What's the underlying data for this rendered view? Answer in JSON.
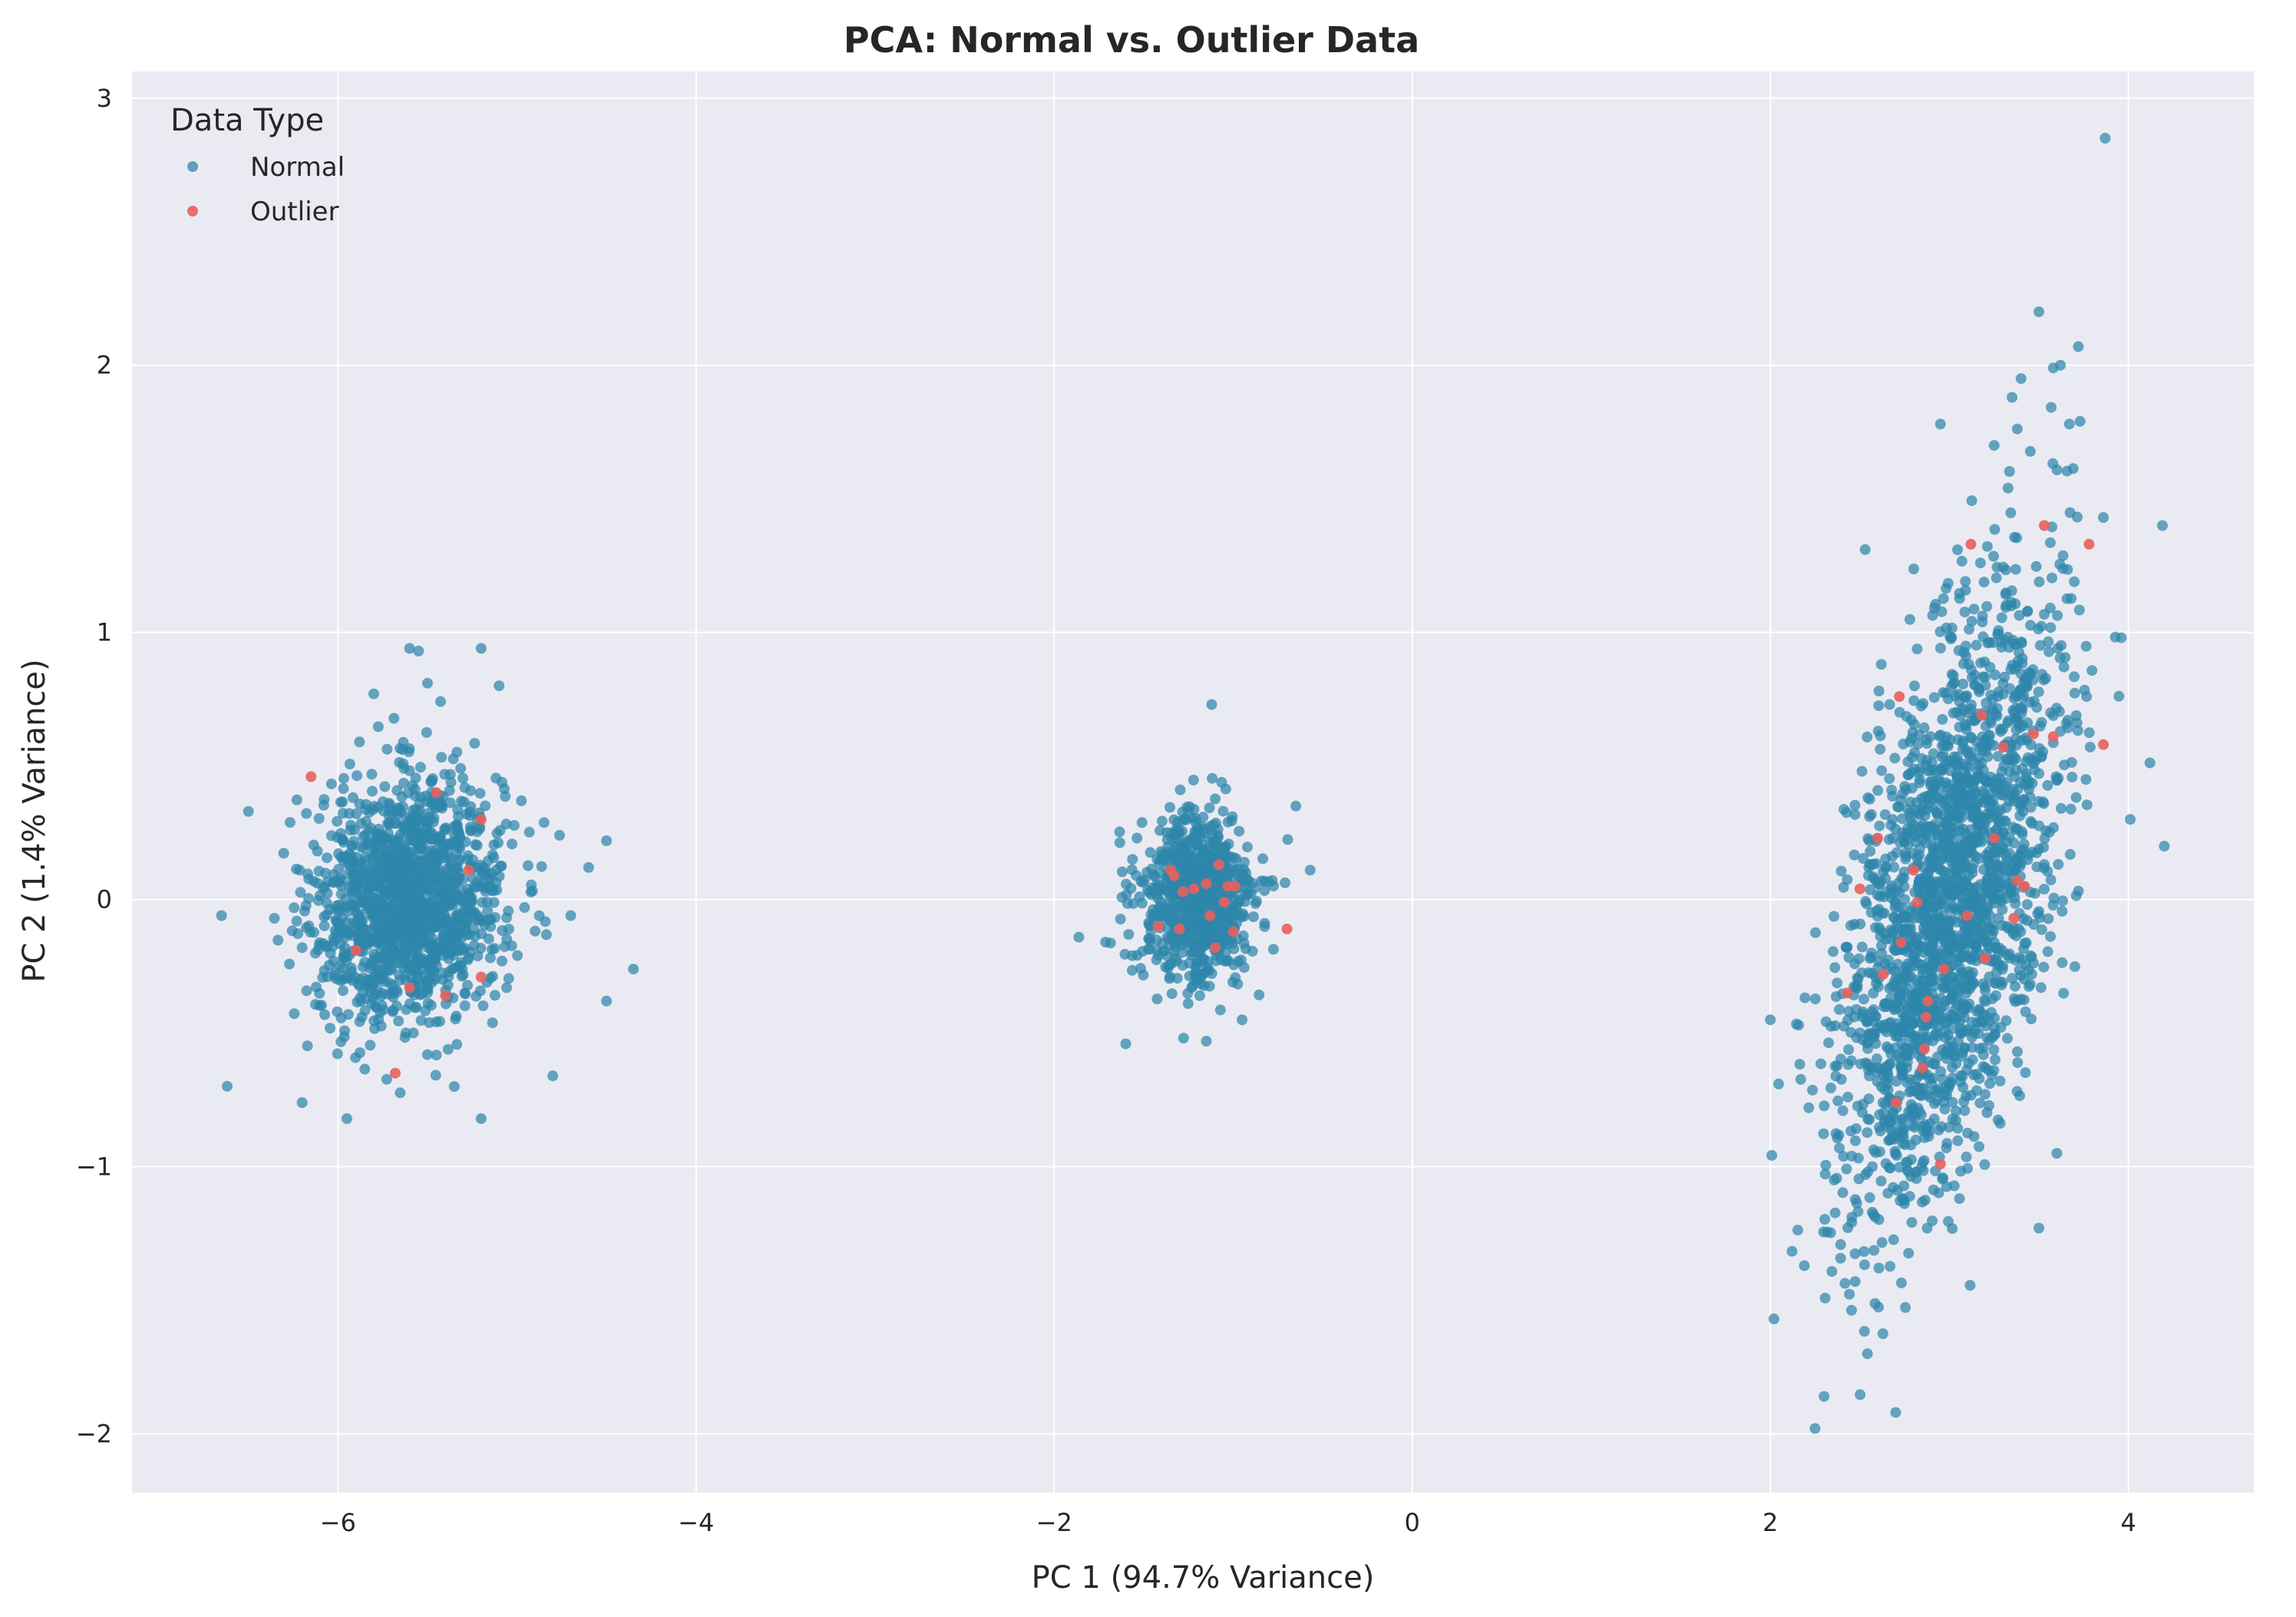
{
  "chart_data": {
    "type": "scatter",
    "title": "PCA: Normal vs. Outlier Data",
    "xlabel": "PC 1 (94.7% Variance)",
    "ylabel": "PC 2 (1.4% Variance)",
    "xlim": [
      -7.15,
      4.7
    ],
    "ylim": [
      -2.22,
      3.1
    ],
    "x_ticks": [
      -6,
      -4,
      -2,
      0,
      2,
      4
    ],
    "y_ticks": [
      -2,
      -1,
      0,
      1,
      2,
      3
    ],
    "x_tick_labels": [
      "−6",
      "−4",
      "−2",
      "0",
      "2",
      "4"
    ],
    "y_tick_labels": [
      "−2",
      "−1",
      "0",
      "1",
      "2",
      "3"
    ],
    "grid": true,
    "background": "#eaeaf2",
    "legend": {
      "title": "Data Type",
      "placement": "top-left",
      "entries": [
        "Normal",
        "Outlier"
      ]
    },
    "series": [
      {
        "name": "Normal",
        "color": "#2e86ab",
        "clusters": [
          {
            "center": [
              -5.6,
              0.0
            ],
            "spread": [
              0.26,
              0.22
            ],
            "corr": 0.1,
            "count": 1500
          },
          {
            "center": [
              -1.2,
              0.0
            ],
            "spread": [
              0.16,
              0.16
            ],
            "corr": 0.0,
            "count": 800
          },
          {
            "center": [
              3.0,
              0.0
            ],
            "spread": [
              0.3,
              0.55
            ],
            "corr": 0.55,
            "count": 2200
          }
        ],
        "points": [
          {
            "x": 3.87,
            "y": 2.85
          },
          {
            "x": 3.5,
            "y": 2.2
          },
          {
            "x": 3.72,
            "y": 2.07
          },
          {
            "x": 3.58,
            "y": 1.99
          },
          {
            "x": 3.62,
            "y": 2.0
          },
          {
            "x": 3.4,
            "y": 1.95
          },
          {
            "x": 3.35,
            "y": 1.88
          },
          {
            "x": 2.95,
            "y": 1.78
          },
          {
            "x": 3.73,
            "y": 1.79
          },
          {
            "x": 3.67,
            "y": 1.78
          },
          {
            "x": 3.25,
            "y": 1.7
          },
          {
            "x": 4.19,
            "y": 1.4
          },
          {
            "x": 3.86,
            "y": 1.43
          },
          {
            "x": 3.96,
            "y": 0.98
          },
          {
            "x": 4.01,
            "y": 0.3
          },
          {
            "x": 4.2,
            "y": 0.2
          },
          {
            "x": 2.53,
            "y": 1.31
          },
          {
            "x": 2.25,
            "y": -1.98
          },
          {
            "x": 2.3,
            "y": -1.86
          },
          {
            "x": 2.7,
            "y": -1.92
          },
          {
            "x": 2.02,
            "y": -1.57
          },
          {
            "x": 3.6,
            "y": -0.95
          },
          {
            "x": 3.5,
            "y": -1.23
          },
          {
            "x": 2.0,
            "y": -0.45
          },
          {
            "x": -5.2,
            "y": 0.94
          },
          {
            "x": -5.6,
            "y": 0.94
          },
          {
            "x": -5.55,
            "y": 0.93
          },
          {
            "x": -5.1,
            "y": 0.8
          },
          {
            "x": -5.5,
            "y": 0.81
          },
          {
            "x": -5.8,
            "y": 0.77
          },
          {
            "x": -6.65,
            "y": -0.06
          },
          {
            "x": -6.5,
            "y": 0.33
          },
          {
            "x": -4.35,
            "y": -0.26
          },
          {
            "x": -4.5,
            "y": 0.22
          },
          {
            "x": -4.5,
            "y": -0.38
          },
          {
            "x": -4.7,
            "y": -0.06
          },
          {
            "x": -4.6,
            "y": 0.12
          },
          {
            "x": -4.8,
            "y": -0.66
          },
          {
            "x": -5.2,
            "y": -0.82
          },
          {
            "x": -5.95,
            "y": -0.82
          },
          {
            "x": -5.35,
            "y": -0.7
          },
          {
            "x": -6.2,
            "y": -0.76
          },
          {
            "x": -1.12,
            "y": 0.73
          },
          {
            "x": -1.6,
            "y": -0.54
          },
          {
            "x": -1.15,
            "y": -0.53
          },
          {
            "x": -0.65,
            "y": 0.35
          },
          {
            "x": -0.57,
            "y": 0.11
          },
          {
            "x": -0.95,
            "y": -0.45
          }
        ]
      },
      {
        "name": "Outlier",
        "color": "#e8605d",
        "points": [
          {
            "x": -6.15,
            "y": 0.46
          },
          {
            "x": -5.45,
            "y": 0.4
          },
          {
            "x": -5.2,
            "y": 0.3
          },
          {
            "x": -5.27,
            "y": 0.11
          },
          {
            "x": -5.9,
            "y": -0.19
          },
          {
            "x": -5.2,
            "y": -0.29
          },
          {
            "x": -5.6,
            "y": -0.33
          },
          {
            "x": -5.4,
            "y": -0.36
          },
          {
            "x": -5.68,
            "y": -0.65
          },
          {
            "x": -1.35,
            "y": 0.11
          },
          {
            "x": -1.33,
            "y": 0.09
          },
          {
            "x": -1.28,
            "y": 0.03
          },
          {
            "x": -1.22,
            "y": 0.04
          },
          {
            "x": -1.15,
            "y": 0.06
          },
          {
            "x": -1.08,
            "y": 0.13
          },
          {
            "x": -1.03,
            "y": 0.05
          },
          {
            "x": -0.99,
            "y": 0.05
          },
          {
            "x": -1.05,
            "y": -0.01
          },
          {
            "x": -1.13,
            "y": -0.06
          },
          {
            "x": -1.0,
            "y": -0.12
          },
          {
            "x": -1.1,
            "y": -0.18
          },
          {
            "x": -1.3,
            "y": -0.11
          },
          {
            "x": -1.42,
            "y": -0.1
          },
          {
            "x": -0.7,
            "y": -0.11
          },
          {
            "x": 3.53,
            "y": 1.4
          },
          {
            "x": 3.78,
            "y": 1.33
          },
          {
            "x": 3.12,
            "y": 1.33
          },
          {
            "x": 3.86,
            "y": 0.58
          },
          {
            "x": 3.58,
            "y": 0.61
          },
          {
            "x": 3.47,
            "y": 0.62
          },
          {
            "x": 3.18,
            "y": 0.69
          },
          {
            "x": 2.72,
            "y": 0.76
          },
          {
            "x": 3.3,
            "y": 0.57
          },
          {
            "x": 2.6,
            "y": 0.23
          },
          {
            "x": 3.25,
            "y": 0.23
          },
          {
            "x": 2.8,
            "y": 0.11
          },
          {
            "x": 2.5,
            "y": 0.04
          },
          {
            "x": 3.42,
            "y": 0.05
          },
          {
            "x": 3.38,
            "y": 0.07
          },
          {
            "x": 2.82,
            "y": -0.01
          },
          {
            "x": 3.1,
            "y": -0.06
          },
          {
            "x": 3.36,
            "y": -0.07
          },
          {
            "x": 2.73,
            "y": -0.16
          },
          {
            "x": 3.2,
            "y": -0.22
          },
          {
            "x": 2.97,
            "y": -0.26
          },
          {
            "x": 2.63,
            "y": -0.28
          },
          {
            "x": 2.43,
            "y": -0.35
          },
          {
            "x": 2.88,
            "y": -0.38
          },
          {
            "x": 2.87,
            "y": -0.44
          },
          {
            "x": 2.86,
            "y": -0.56
          },
          {
            "x": 2.85,
            "y": -0.63
          },
          {
            "x": 2.7,
            "y": -0.76
          },
          {
            "x": 2.95,
            "y": -0.99
          }
        ]
      }
    ]
  }
}
